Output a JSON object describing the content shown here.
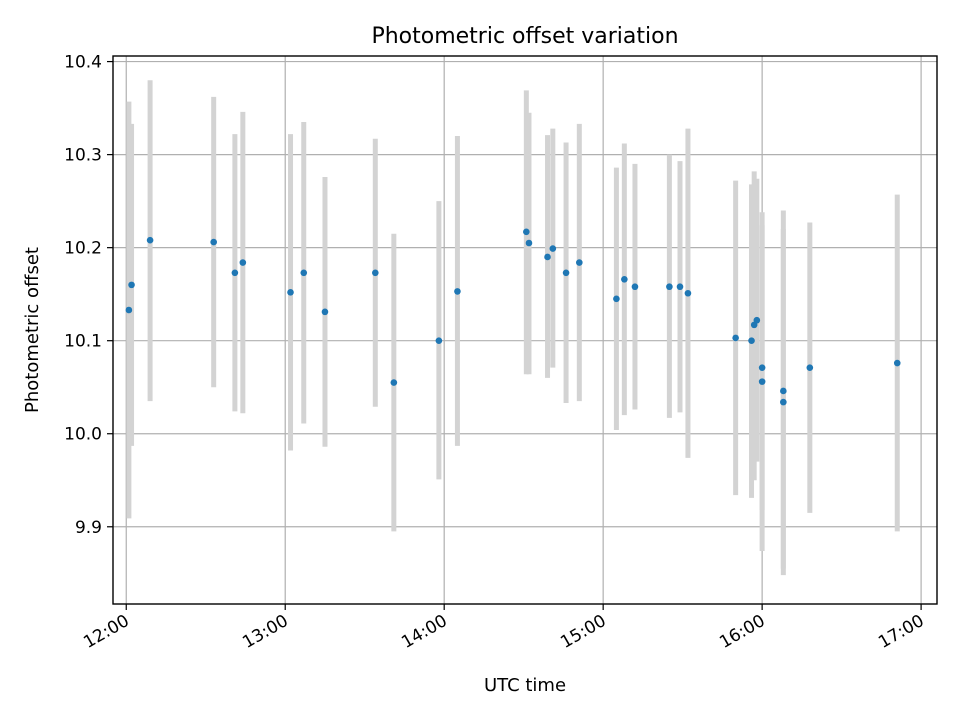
{
  "chart_data": {
    "type": "scatter",
    "title": "Photometric offset variation",
    "xlabel": "UTC time",
    "ylabel": "Photometric offset",
    "grid": true,
    "legend": "none",
    "xlim": [
      "11:55",
      "17:06"
    ],
    "ylim": [
      9.817,
      10.406
    ],
    "x_ticks": [
      "12:00",
      "13:00",
      "14:00",
      "15:00",
      "16:00",
      "17:00"
    ],
    "y_ticks": [
      9.9,
      10.0,
      10.1,
      10.2,
      10.3,
      10.4
    ],
    "y_tick_labels": [
      "9.9",
      "10.0",
      "10.1",
      "10.2",
      "10.3",
      "10.4"
    ],
    "colors": {
      "marker": "#1f77b4",
      "errorbar": "#d3d3d3"
    },
    "series": [
      {
        "points": [
          {
            "t": "12:01",
            "y": 10.133,
            "lo": 9.909,
            "hi": 10.357
          },
          {
            "t": "12:02",
            "y": 10.16,
            "lo": 9.987,
            "hi": 10.333
          },
          {
            "t": "12:09",
            "y": 10.208,
            "lo": 10.035,
            "hi": 10.38
          },
          {
            "t": "12:33",
            "y": 10.206,
            "lo": 10.05,
            "hi": 10.362
          },
          {
            "t": "12:41",
            "y": 10.173,
            "lo": 10.024,
            "hi": 10.322
          },
          {
            "t": "12:44",
            "y": 10.184,
            "lo": 10.022,
            "hi": 10.346
          },
          {
            "t": "13:02",
            "y": 10.152,
            "lo": 9.982,
            "hi": 10.322
          },
          {
            "t": "13:07",
            "y": 10.173,
            "lo": 10.011,
            "hi": 10.335
          },
          {
            "t": "13:15",
            "y": 10.131,
            "lo": 9.986,
            "hi": 10.276
          },
          {
            "t": "13:34",
            "y": 10.173,
            "lo": 10.029,
            "hi": 10.317
          },
          {
            "t": "13:41",
            "y": 10.055,
            "lo": 9.895,
            "hi": 10.215
          },
          {
            "t": "13:58",
            "y": 10.1,
            "lo": 9.951,
            "hi": 10.25
          },
          {
            "t": "14:05",
            "y": 10.153,
            "lo": 9.987,
            "hi": 10.32
          },
          {
            "t": "14:31",
            "y": 10.217,
            "lo": 10.064,
            "hi": 10.369
          },
          {
            "t": "14:32",
            "y": 10.205,
            "lo": 10.064,
            "hi": 10.345
          },
          {
            "t": "14:39",
            "y": 10.19,
            "lo": 10.06,
            "hi": 10.321
          },
          {
            "t": "14:41",
            "y": 10.199,
            "lo": 10.071,
            "hi": 10.328
          },
          {
            "t": "14:46",
            "y": 10.173,
            "lo": 10.033,
            "hi": 10.313
          },
          {
            "t": "14:51",
            "y": 10.184,
            "lo": 10.035,
            "hi": 10.333
          },
          {
            "t": "15:05",
            "y": 10.145,
            "lo": 10.004,
            "hi": 10.286
          },
          {
            "t": "15:08",
            "y": 10.166,
            "lo": 10.02,
            "hi": 10.312
          },
          {
            "t": "15:12",
            "y": 10.158,
            "lo": 10.026,
            "hi": 10.29
          },
          {
            "t": "15:25",
            "y": 10.158,
            "lo": 10.017,
            "hi": 10.3
          },
          {
            "t": "15:29",
            "y": 10.158,
            "lo": 10.023,
            "hi": 10.293
          },
          {
            "t": "15:32",
            "y": 10.151,
            "lo": 9.974,
            "hi": 10.328
          },
          {
            "t": "15:50",
            "y": 10.103,
            "lo": 9.934,
            "hi": 10.272
          },
          {
            "t": "15:56",
            "y": 10.1,
            "lo": 9.931,
            "hi": 10.268
          },
          {
            "t": "15:57",
            "y": 10.117,
            "lo": 9.95,
            "hi": 10.282
          },
          {
            "t": "15:58",
            "y": 10.122,
            "lo": 9.97,
            "hi": 10.274
          },
          {
            "t": "16:00",
            "y": 10.056,
            "lo": 9.874,
            "hi": 10.238
          },
          {
            "t": "16:00",
            "y": 10.071,
            "lo": 9.918,
            "hi": 10.224
          },
          {
            "t": "16:08",
            "y": 10.046,
            "lo": 9.855,
            "hi": 10.24
          },
          {
            "t": "16:08",
            "y": 10.034,
            "lo": 9.848,
            "hi": 10.22
          },
          {
            "t": "16:18",
            "y": 10.071,
            "lo": 9.915,
            "hi": 10.227
          },
          {
            "t": "16:51",
            "y": 10.076,
            "lo": 9.895,
            "hi": 10.257
          }
        ]
      }
    ]
  }
}
